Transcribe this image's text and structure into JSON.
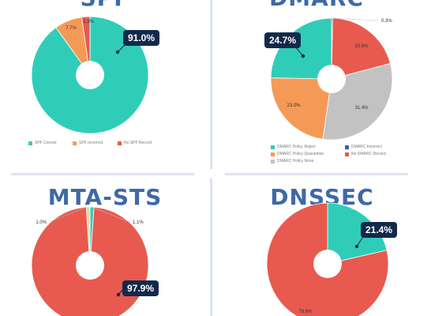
{
  "panels": [
    {
      "id": "spf",
      "title": "SPF",
      "callout": "91.0%",
      "chart_data": {
        "type": "pie",
        "title": "SPF",
        "slices": [
          {
            "label": "SPF Correct",
            "value": 91.0,
            "color": "#2fcdb8"
          },
          {
            "label": "SPF Incorrect",
            "value": 7.7,
            "color": "#f59a56"
          },
          {
            "label": "No SPF Record",
            "value": 2.3,
            "color": "#e85a4f"
          }
        ],
        "data_labels": [
          "",
          "7.7%",
          "2.3%"
        ],
        "legend": "bottom"
      },
      "legend": [
        "SPF Correct",
        "SPF Incorrect",
        "No SPF Record"
      ]
    },
    {
      "id": "dmarc",
      "title": "DMARC",
      "callout": "24.7%",
      "chart_data": {
        "type": "pie",
        "title": "DMARC",
        "slices": [
          {
            "label": "DMARC Incorrect",
            "value": 0.3,
            "color": "#3d5fa8"
          },
          {
            "label": "No DMARC Record",
            "value": 20.6,
            "color": "#e85a4f"
          },
          {
            "label": "DMARC Policy None",
            "value": 31.4,
            "color": "#c2c2c2"
          },
          {
            "label": "DMARC Policy Quarantine",
            "value": 23.0,
            "color": "#f59a56"
          },
          {
            "label": "DMARC Policy Reject",
            "value": 24.7,
            "color": "#2fcdb8"
          }
        ],
        "data_labels": [
          "0.3%",
          "20.6%",
          "31.4%",
          "23.0%",
          ""
        ],
        "legend": "bottom"
      },
      "legend": [
        "DMARC Policy Reject",
        "DMARC Incorrect",
        "DMARC Policy Quarantine",
        "No DMARC Record",
        "DMARC Policy None"
      ]
    },
    {
      "id": "mtasts",
      "title": "MTA-STS",
      "callout": "97.9%",
      "chart_data": {
        "type": "pie",
        "title": "MTA-STS",
        "slices": [
          {
            "label": "",
            "value": 1.1,
            "color": "#2fcdb8"
          },
          {
            "label": "",
            "value": 97.9,
            "color": "#e85a4f"
          },
          {
            "label": "",
            "value": 1.0,
            "color": "#f2d3a8"
          }
        ],
        "data_labels": [
          "1.1%",
          "",
          "1.0%"
        ]
      }
    },
    {
      "id": "dnssec",
      "title": "DNSSEC",
      "callout": "21.4%",
      "chart_data": {
        "type": "pie",
        "title": "DNSSEC",
        "slices": [
          {
            "label": "",
            "value": 21.4,
            "color": "#2fcdb8"
          },
          {
            "label": "",
            "value": 78.6,
            "color": "#e85a4f"
          }
        ],
        "data_labels": [
          "",
          "78.6%"
        ]
      }
    }
  ]
}
